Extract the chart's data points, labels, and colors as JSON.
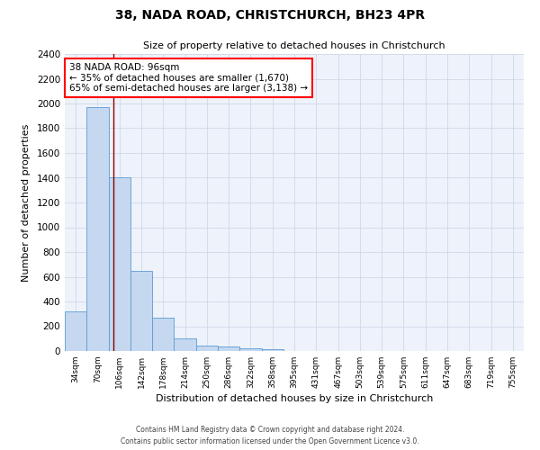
{
  "title_line1": "38, NADA ROAD, CHRISTCHURCH, BH23 4PR",
  "title_line2": "Size of property relative to detached houses in Christchurch",
  "xlabel": "Distribution of detached houses by size in Christchurch",
  "ylabel": "Number of detached properties",
  "bar_labels": [
    "34sqm",
    "70sqm",
    "106sqm",
    "142sqm",
    "178sqm",
    "214sqm",
    "250sqm",
    "286sqm",
    "322sqm",
    "358sqm",
    "395sqm",
    "431sqm",
    "467sqm",
    "503sqm",
    "539sqm",
    "575sqm",
    "611sqm",
    "647sqm",
    "683sqm",
    "719sqm",
    "755sqm"
  ],
  "bar_values": [
    320,
    1970,
    1400,
    650,
    270,
    100,
    45,
    35,
    20,
    15,
    0,
    0,
    0,
    0,
    0,
    0,
    0,
    0,
    0,
    0,
    0
  ],
  "bar_color": "#c5d8f0",
  "bar_edge_color": "#5b9bd5",
  "annotation_line_color": "#8b0000",
  "annotation_text_line1": "38 NADA ROAD: 96sqm",
  "annotation_text_line2": "← 35% of detached houses are smaller (1,670)",
  "annotation_text_line3": "65% of semi-detached houses are larger (3,138) →",
  "ylim": [
    0,
    2400
  ],
  "yticks": [
    0,
    200,
    400,
    600,
    800,
    1000,
    1200,
    1400,
    1600,
    1800,
    2000,
    2200,
    2400
  ],
  "grid_color": "#d0d8e8",
  "background_color": "#eef2fa",
  "footer_line1": "Contains HM Land Registry data © Crown copyright and database right 2024.",
  "footer_line2": "Contains public sector information licensed under the Open Government Licence v3.0."
}
